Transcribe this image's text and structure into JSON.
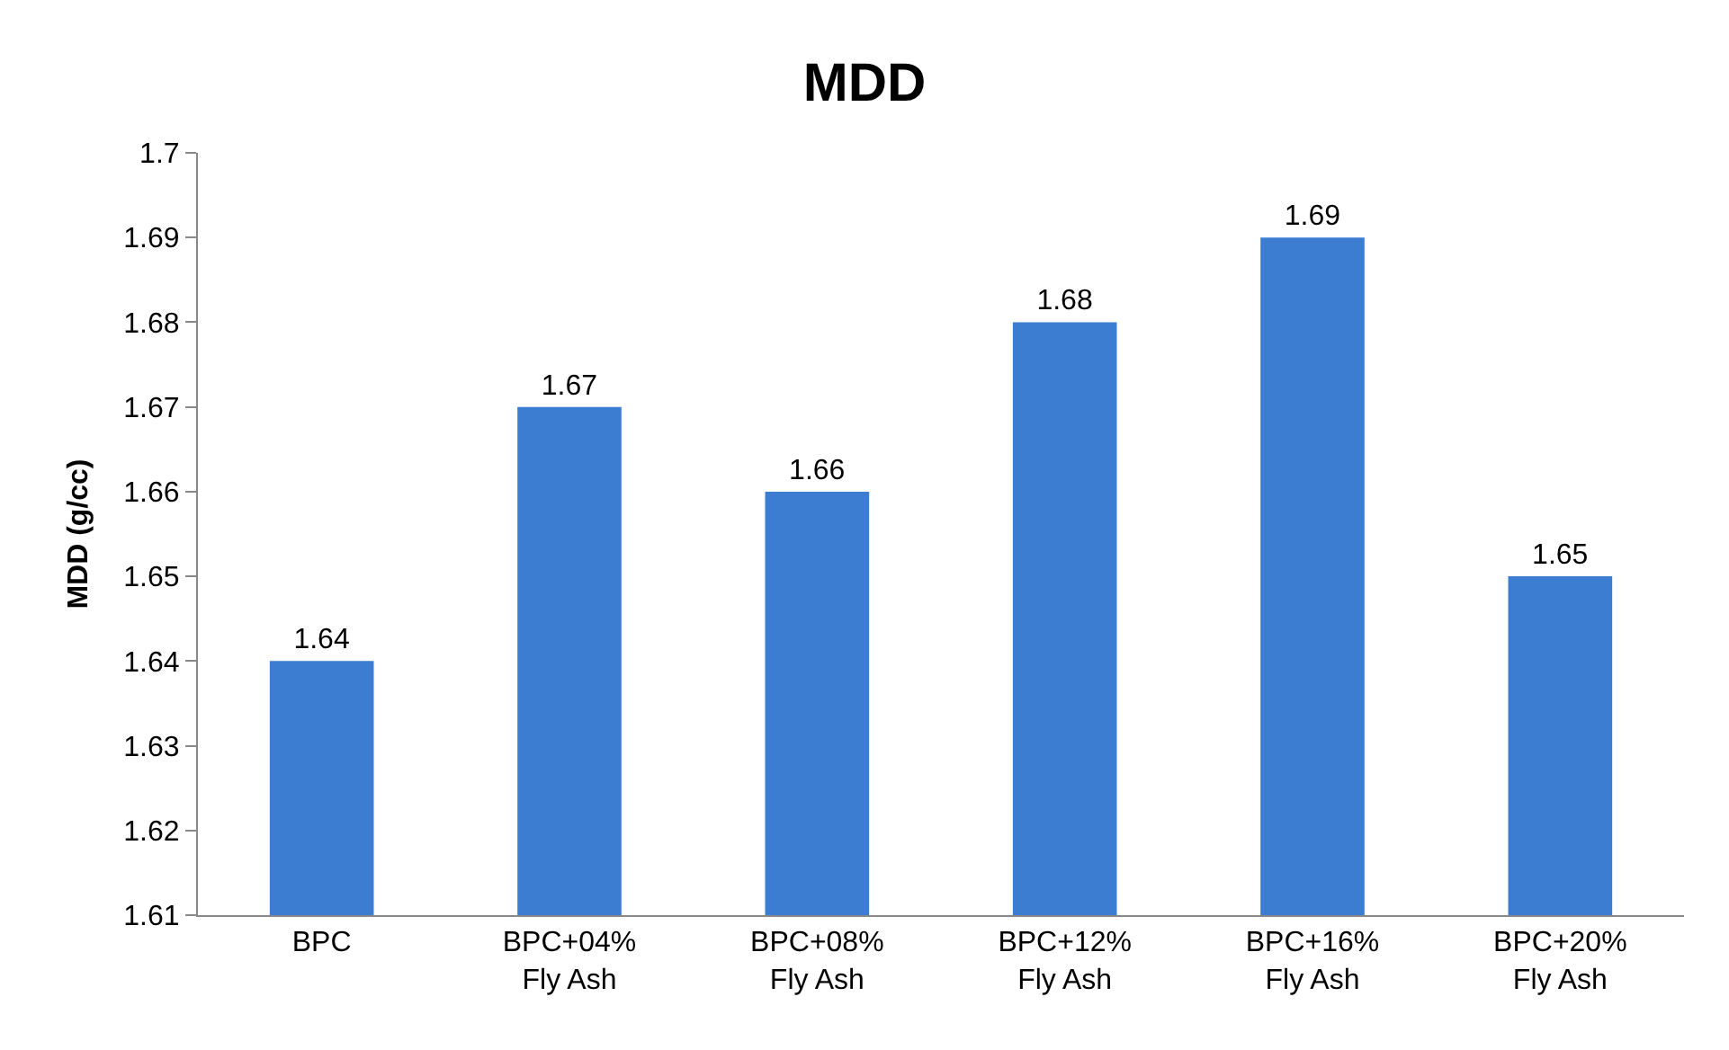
{
  "chart_data": {
    "type": "bar",
    "title": "MDD",
    "ylabel": "MDD (g/cc)",
    "categories": [
      "BPC",
      "BPC+04%\nFly Ash",
      "BPC+08%\nFly Ash",
      "BPC+12%\nFly Ash",
      "BPC+16%\nFly Ash",
      "BPC+20%\nFly Ash"
    ],
    "values": [
      1.64,
      1.67,
      1.66,
      1.68,
      1.69,
      1.65
    ],
    "color": "#3d7dd1",
    "ylim": [
      1.61,
      1.7
    ],
    "yticks": [
      1.61,
      1.62,
      1.63,
      1.64,
      1.65,
      1.66,
      1.67,
      1.68,
      1.69,
      1.7
    ],
    "data_labels": true,
    "grid": false,
    "legend": false
  }
}
